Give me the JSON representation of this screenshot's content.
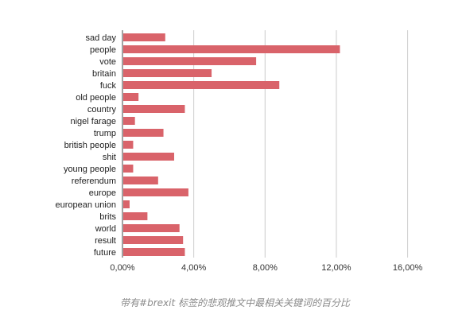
{
  "caption": "带有#brexit 标签的悲观推文中最相关关键词的百分比",
  "colors": {
    "bar": "#d9636a",
    "grid": "#cccccc",
    "axis": "#444444"
  },
  "chart_data": {
    "type": "bar",
    "orientation": "horizontal",
    "categories": [
      "sad day",
      "people",
      "vote",
      "britain",
      "fuck",
      "old people",
      "country",
      "nigel farage",
      "trump",
      "british people",
      "shit",
      "young people",
      "referendum",
      "europe",
      "european union",
      "brits",
      "world",
      "result",
      "future"
    ],
    "values": [
      2.4,
      12.2,
      7.5,
      5.0,
      8.8,
      0.9,
      3.5,
      0.7,
      2.3,
      0.6,
      2.9,
      0.6,
      2.0,
      3.7,
      0.4,
      1.4,
      3.2,
      3.4,
      3.5
    ],
    "xlim": [
      0,
      17
    ],
    "xticks": [
      0,
      4,
      8,
      12,
      16
    ],
    "xtick_labels": [
      "0,00%",
      "4,00%",
      "8,00%",
      "12,00%",
      "16,00%"
    ],
    "grid": "vertical",
    "title": "",
    "xlabel": "",
    "ylabel": ""
  }
}
